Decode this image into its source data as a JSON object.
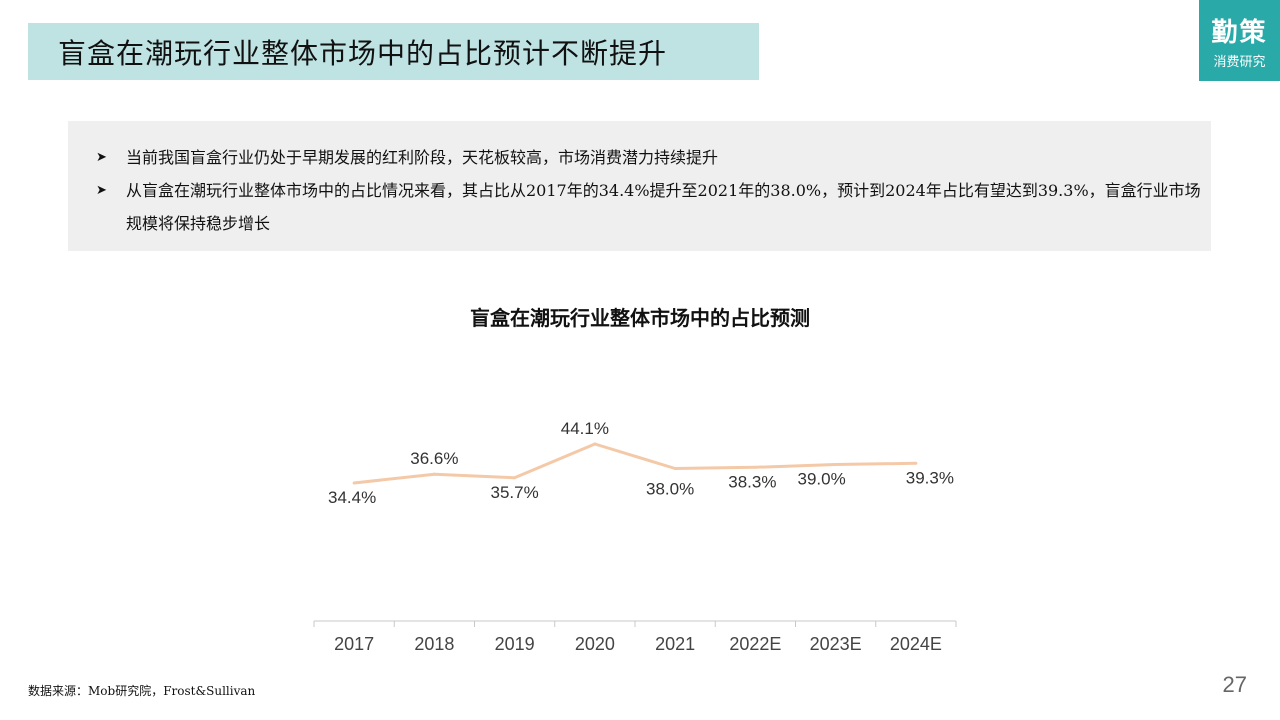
{
  "header": {
    "title": "盲盒在潮玩行业整体市场中的占比预计不断提升",
    "logo_main": "勤策",
    "logo_sub": "消费研究"
  },
  "summary": {
    "bullet_icon": "arrowhead-bullet-icon",
    "bullets": [
      "当前我国盲盒行业仍处于早期发展的红利阶段，天花板较高，市场消费潜力持续提升",
      "从盲盒在潮玩行业整体市场中的占比情况来看，其占比从2017年的34.4%提升至2021年的38.0%，预计到2024年占比有望达到39.3%，盲盒行业市场规模将保持稳步增长"
    ]
  },
  "chart_data": {
    "type": "line",
    "title": "盲盒在潮玩行业整体市场中的占比预测",
    "categories": [
      "2017",
      "2018",
      "2019",
      "2020",
      "2021",
      "2022E",
      "2023E",
      "2024E"
    ],
    "values": [
      34.4,
      36.6,
      35.7,
      44.1,
      38.0,
      38.3,
      39.0,
      39.3
    ],
    "data_labels": [
      "34.4%",
      "36.6%",
      "35.7%",
      "44.1%",
      "38.0%",
      "38.3%",
      "39.0%",
      "39.3%"
    ],
    "line_color": "#f4c9a8",
    "grid": false,
    "legend": "none"
  },
  "footer": {
    "source": "数据来源：Mob研究院，Frost&Sullivan",
    "page_number": "27"
  }
}
